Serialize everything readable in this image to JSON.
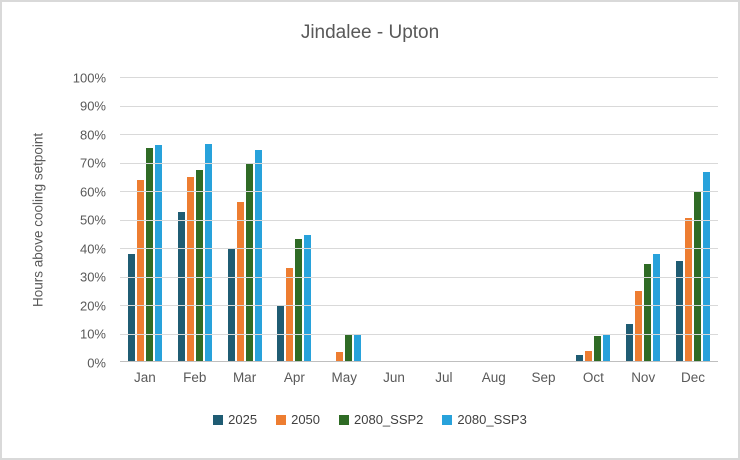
{
  "chart_data": {
    "type": "bar",
    "title": "Jindalee - Upton",
    "ylabel": "Hours above cooling setpoint",
    "xlabel": "",
    "categories": [
      "Jan",
      "Feb",
      "Mar",
      "Apr",
      "May",
      "Jun",
      "Jul",
      "Aug",
      "Sep",
      "Oct",
      "Nov",
      "Dec"
    ],
    "series": [
      {
        "name": "2025",
        "color": "#1F5C73",
        "values": [
          38,
          52.5,
          39.5,
          20,
          0.5,
          0,
          0,
          0,
          0,
          2.5,
          13.5,
          35.5
        ]
      },
      {
        "name": "2050",
        "color": "#ED7D31",
        "values": [
          64,
          65,
          56,
          33,
          3.5,
          0,
          0,
          0,
          0,
          4,
          25,
          50.5
        ]
      },
      {
        "name": "2080_SSP2",
        "color": "#2F6B25",
        "values": [
          75,
          67.5,
          70,
          43,
          10,
          0.5,
          0,
          0,
          0,
          9,
          34.5,
          59.5
        ]
      },
      {
        "name": "2080_SSP3",
        "color": "#28A2DB",
        "values": [
          76,
          76.5,
          74.5,
          44.5,
          9.5,
          0.5,
          0,
          0,
          0,
          9.5,
          38,
          66.5
        ]
      }
    ],
    "ylim": [
      0,
      100
    ],
    "ytick_step": 10,
    "ytick_suffix": "%",
    "grid": "horizontal",
    "legend_position": "bottom"
  },
  "style_colors": {
    "gridline": "#d9d9d9",
    "axis_line": "#bfbfbf",
    "title_text": "#595959",
    "axis_text": "#595959",
    "legend_text": "#404040"
  }
}
